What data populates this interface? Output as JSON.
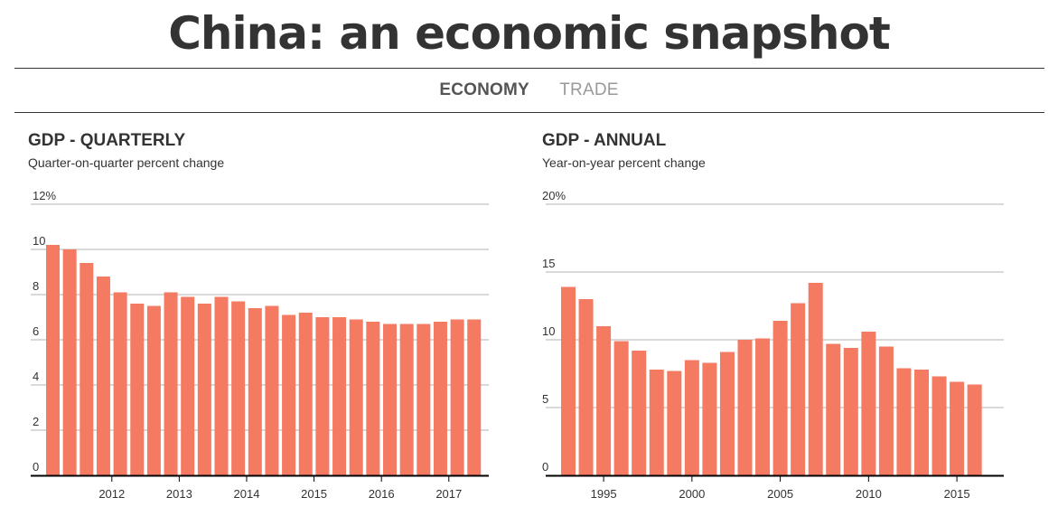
{
  "header": {
    "title": "China: an economic snapshot"
  },
  "tabs": [
    {
      "label": "ECONOMY",
      "active": true
    },
    {
      "label": "TRADE",
      "active": false
    }
  ],
  "colors": {
    "bar": "#f47a62",
    "grid": "#b3b3b3",
    "axis": "#000000",
    "text": "#333333"
  },
  "chart_data": [
    {
      "type": "bar",
      "title": "GDP - QUARTERLY",
      "subtitle": "Quarter-on-quarter percent change",
      "ylim": [
        0,
        12
      ],
      "yticks": [
        0,
        2,
        4,
        6,
        8,
        10,
        12
      ],
      "ytick_labels": [
        "0",
        "2",
        "4",
        "6",
        "8",
        "10",
        "12%"
      ],
      "grid": true,
      "x": [
        "2011-Q1",
        "2011-Q2",
        "2011-Q3",
        "2011-Q4",
        "2012-Q1",
        "2012-Q2",
        "2012-Q3",
        "2012-Q4",
        "2013-Q1",
        "2013-Q2",
        "2013-Q3",
        "2013-Q4",
        "2014-Q1",
        "2014-Q2",
        "2014-Q3",
        "2014-Q4",
        "2015-Q1",
        "2015-Q2",
        "2015-Q3",
        "2015-Q4",
        "2016-Q1",
        "2016-Q2",
        "2016-Q3",
        "2016-Q4",
        "2017-Q1",
        "2017-Q2"
      ],
      "values": [
        10.2,
        10.0,
        9.4,
        8.8,
        8.1,
        7.6,
        7.5,
        8.1,
        7.9,
        7.6,
        7.9,
        7.7,
        7.4,
        7.5,
        7.1,
        7.2,
        7.0,
        7.0,
        6.9,
        6.8,
        6.7,
        6.7,
        6.7,
        6.8,
        6.9,
        6.9
      ],
      "xtick_labels": [
        "2012",
        "2013",
        "2014",
        "2015",
        "2016",
        "2017"
      ],
      "xtick_index": [
        3.5,
        7.5,
        11.5,
        15.5,
        19.5,
        23.5
      ]
    },
    {
      "type": "bar",
      "title": "GDP - ANNUAL",
      "subtitle": "Year-on-year percent change",
      "ylim": [
        0,
        20
      ],
      "yticks": [
        0,
        5,
        10,
        15,
        20
      ],
      "ytick_labels": [
        "0",
        "5",
        "10",
        "15",
        "20%"
      ],
      "grid": true,
      "x": [
        1993,
        1994,
        1995,
        1996,
        1997,
        1998,
        1999,
        2000,
        2001,
        2002,
        2003,
        2004,
        2005,
        2006,
        2007,
        2008,
        2009,
        2010,
        2011,
        2012,
        2013,
        2014,
        2015,
        2016
      ],
      "values": [
        13.9,
        13.0,
        11.0,
        9.9,
        9.2,
        7.8,
        7.7,
        8.5,
        8.3,
        9.1,
        10.0,
        10.1,
        11.4,
        12.7,
        14.2,
        9.7,
        9.4,
        10.6,
        9.5,
        7.9,
        7.8,
        7.3,
        6.9,
        6.7
      ],
      "xtick_labels": [
        "1995",
        "2000",
        "2005",
        "2010",
        "2015"
      ],
      "xtick_index": [
        2,
        7,
        12,
        17,
        22
      ]
    }
  ]
}
